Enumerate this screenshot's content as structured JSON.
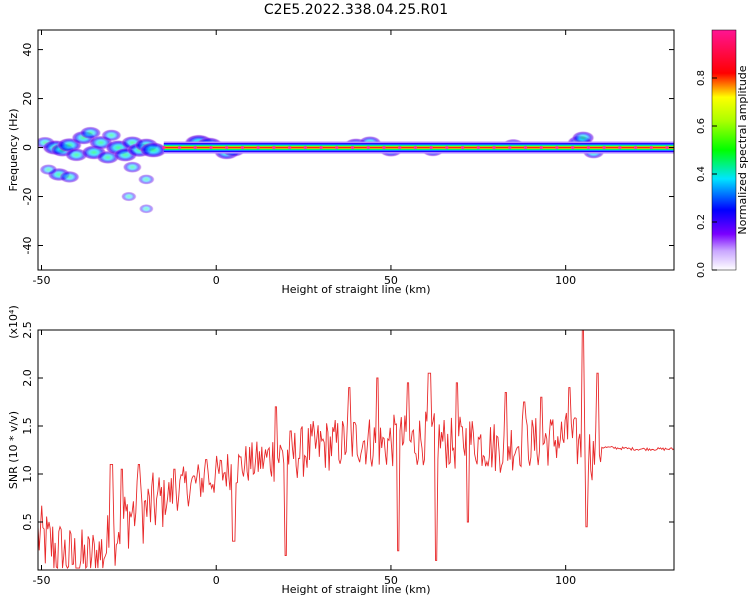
{
  "title": "C2E5.2022.338.04.25.R01",
  "chart_data": [
    {
      "type": "heatmap",
      "xlabel": "Height of straight line (km)",
      "ylabel": "Frequency (Hz)",
      "xlim": [
        -51,
        131
      ],
      "ylim": [
        -50,
        48
      ],
      "x_ticks": [
        -50,
        0,
        50,
        100
      ],
      "y_ticks": [
        -40,
        -20,
        0,
        20,
        40
      ],
      "colorbar": {
        "label": "Normalized spectral amplitude",
        "range": [
          0,
          1
        ],
        "ticks": [
          "0.0",
          "0.2",
          "0.4",
          "0.6",
          "0.8"
        ],
        "colors": [
          "#ffffff",
          "#7a00ff",
          "#0000ff",
          "#00e5ff",
          "#00ff00",
          "#ffff00",
          "#ff0000",
          "#ff1493"
        ]
      },
      "ridge": {
        "x_start": -15,
        "x_end": 131,
        "frequency": 0
      },
      "blobs": [
        {
          "x": -49,
          "f": 2,
          "a": 0.35
        },
        {
          "x": -46,
          "f": 0,
          "a": 0.6
        },
        {
          "x": -44,
          "f": -1,
          "a": 0.5
        },
        {
          "x": -42,
          "f": 1,
          "a": 0.55
        },
        {
          "x": -40,
          "f": -3,
          "a": 0.45
        },
        {
          "x": -38,
          "f": 4,
          "a": 0.5
        },
        {
          "x": -36,
          "f": 6,
          "a": 0.4
        },
        {
          "x": -35,
          "f": -2,
          "a": 0.55
        },
        {
          "x": -33,
          "f": 2,
          "a": 0.5
        },
        {
          "x": -31,
          "f": -4,
          "a": 0.45
        },
        {
          "x": -30,
          "f": 5,
          "a": 0.35
        },
        {
          "x": -28,
          "f": 0,
          "a": 0.6
        },
        {
          "x": -26,
          "f": -3,
          "a": 0.5
        },
        {
          "x": -24,
          "f": 2,
          "a": 0.45
        },
        {
          "x": -22,
          "f": -1,
          "a": 0.55
        },
        {
          "x": -20,
          "f": 1,
          "a": 0.5
        },
        {
          "x": -18,
          "f": -1,
          "a": 0.65
        },
        {
          "x": -45,
          "f": -11,
          "a": 0.45
        },
        {
          "x": -42,
          "f": -12,
          "a": 0.35
        },
        {
          "x": -48,
          "f": -9,
          "a": 0.25
        },
        {
          "x": -24,
          "f": -8,
          "a": 0.3
        },
        {
          "x": -20,
          "f": -13,
          "a": 0.2
        },
        {
          "x": -25,
          "f": -20,
          "a": 0.15
        },
        {
          "x": -20,
          "f": -25,
          "a": 0.12
        },
        {
          "x": -5,
          "f": 2,
          "a": 0.7
        },
        {
          "x": -2,
          "f": 1,
          "a": 0.65
        },
        {
          "x": 3,
          "f": -2,
          "a": 0.55
        },
        {
          "x": 5,
          "f": -1,
          "a": 0.5
        },
        {
          "x": 40,
          "f": 1,
          "a": 0.5
        },
        {
          "x": 44,
          "f": 2,
          "a": 0.45
        },
        {
          "x": 50,
          "f": -1,
          "a": 0.5
        },
        {
          "x": 62,
          "f": -1,
          "a": 0.45
        },
        {
          "x": 85,
          "f": 1,
          "a": 0.4
        },
        {
          "x": 104,
          "f": 2,
          "a": 0.55
        },
        {
          "x": 105,
          "f": 4,
          "a": 0.45
        },
        {
          "x": 108,
          "f": -2,
          "a": 0.4
        }
      ]
    },
    {
      "type": "line",
      "xlabel": "Height of straight line (km)",
      "ylabel": "SNR (10 * v/v)",
      "y_scale_label": "(x10⁴)",
      "xlim": [
        -51,
        131
      ],
      "ylim": [
        0,
        2.5
      ],
      "x_ticks": [
        -50,
        0,
        50,
        100
      ],
      "y_ticks": [
        "0.5",
        "1.0",
        "1.5",
        "2.0",
        "2.5"
      ],
      "series": [
        {
          "color": "#e8292a",
          "x": [
            -51,
            -47,
            -42,
            -37,
            -32,
            -28,
            -24,
            -20,
            -16,
            -12,
            -8,
            -4,
            0,
            4,
            8,
            12,
            16,
            20,
            24,
            28,
            32,
            36,
            40,
            44,
            48,
            52,
            56,
            60,
            64,
            68,
            72,
            76,
            80,
            84,
            88,
            92,
            96,
            100,
            104,
            106,
            108,
            110,
            115,
            120,
            125,
            131
          ],
          "values": [
            0.35,
            0.25,
            0.12,
            0.08,
            0.2,
            0.45,
            0.6,
            0.62,
            0.72,
            0.82,
            0.88,
            0.93,
            0.98,
            1.05,
            1.1,
            1.13,
            1.18,
            1.2,
            1.22,
            1.28,
            1.3,
            1.32,
            1.36,
            1.34,
            1.3,
            1.36,
            1.33,
            1.38,
            1.35,
            1.3,
            1.36,
            1.32,
            1.28,
            1.3,
            1.34,
            1.32,
            1.36,
            1.38,
            1.3,
            1.25,
            1.2,
            1.28,
            1.27,
            1.26,
            1.26,
            1.26
          ]
        }
      ],
      "spikes": [
        {
          "x": 17,
          "v": 1.7
        },
        {
          "x": 20,
          "v": 0.15
        },
        {
          "x": 38,
          "v": 1.9
        },
        {
          "x": 46,
          "v": 2.0
        },
        {
          "x": 52,
          "v": 0.2
        },
        {
          "x": 55,
          "v": 1.95
        },
        {
          "x": 61,
          "v": 2.05
        },
        {
          "x": 63,
          "v": 0.1
        },
        {
          "x": 69,
          "v": 1.95
        },
        {
          "x": 72,
          "v": 0.5
        },
        {
          "x": 83,
          "v": 1.85
        },
        {
          "x": 88,
          "v": 1.75
        },
        {
          "x": 93,
          "v": 1.8
        },
        {
          "x": 101,
          "v": 1.9
        },
        {
          "x": 105,
          "v": 2.5
        },
        {
          "x": 106,
          "v": 0.45
        },
        {
          "x": 109,
          "v": 2.05
        },
        {
          "x": -30,
          "v": 1.1
        },
        {
          "x": -27,
          "v": 1.05
        },
        {
          "x": -22,
          "v": 1.1
        },
        {
          "x": -12,
          "v": 1.05
        },
        {
          "x": -3,
          "v": 1.15
        },
        {
          "x": 5,
          "v": 0.3
        }
      ]
    }
  ]
}
